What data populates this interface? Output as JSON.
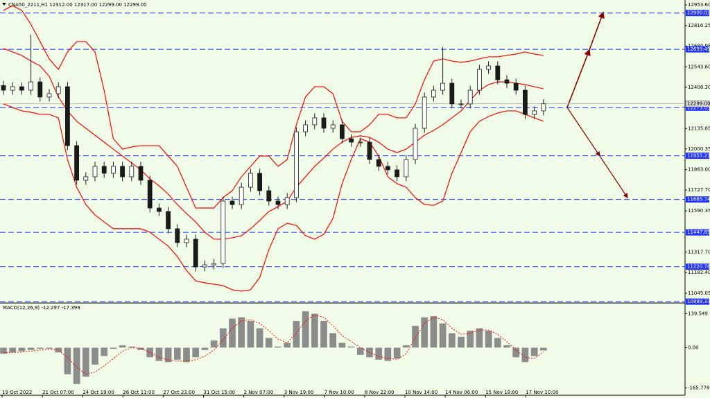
{
  "chart_data": [
    {
      "type": "candlestick",
      "title": "CNA50_2211,H1  12312.00 12317.00 12299.00 12299.00",
      "xlabels": [
        "19 Oct 2022",
        "21 Oct 07:00",
        "24 Oct 19:00",
        "26 Oct 11:00",
        "27 Oct 23:00",
        "31 Oct 15:00",
        "2 Nov 07:00",
        "3 Nov 19:00",
        "7 Nov 10:00",
        "8 Nov 22:00",
        "10 Nov 14:00",
        "14 Nov 06:00",
        "15 Nov 18:00",
        "17 Nov 10:00"
      ],
      "open": [
        12420,
        12389,
        12412,
        12389,
        12444,
        12344,
        12366,
        12412,
        12022,
        11793,
        11816,
        11885,
        11839,
        11885,
        11816,
        11885,
        11793,
        11609,
        11586,
        11472,
        11380,
        11403,
        11219,
        11233,
        11242,
        11655,
        11632,
        11747,
        11839,
        11724,
        11655,
        11632,
        11678,
        12114,
        12160,
        12206,
        12137,
        12160,
        12068,
        12045,
        12045,
        11930,
        11885,
        11862,
        11816,
        11930,
        12137,
        12344,
        12389,
        12435,
        12298,
        12298,
        12389,
        12527,
        12550,
        12458,
        12435,
        12389,
        12229,
        12252
      ],
      "high": [
        12450,
        12442,
        12442,
        12757,
        12474,
        12396,
        12442,
        12442,
        12052,
        11846,
        11915,
        11915,
        11915,
        11915,
        11915,
        11915,
        11823,
        11639,
        11616,
        11502,
        11433,
        11433,
        11263,
        11272,
        11685,
        11685,
        11777,
        11869,
        11869,
        11754,
        11685,
        11708,
        12144,
        12190,
        12236,
        12236,
        12190,
        12190,
        12098,
        12075,
        12075,
        11960,
        11915,
        11892,
        11960,
        12167,
        12374,
        12419,
        12674,
        12465,
        12328,
        12419,
        12557,
        12580,
        12580,
        12488,
        12465,
        12419,
        12282,
        12329
      ],
      "low": [
        12359,
        12359,
        12359,
        12359,
        12314,
        12314,
        12336,
        11992,
        11763,
        11763,
        11786,
        11809,
        11809,
        11786,
        11786,
        11763,
        11579,
        11556,
        11442,
        11350,
        11350,
        11189,
        11189,
        11203,
        11212,
        11602,
        11602,
        11717,
        11694,
        11625,
        11602,
        11602,
        11648,
        12084,
        12130,
        12107,
        12107,
        12038,
        12015,
        12015,
        11900,
        11855,
        11832,
        11786,
        11786,
        11900,
        12107,
        12314,
        12359,
        12268,
        12268,
        12268,
        12359,
        12497,
        12428,
        12405,
        12359,
        12199,
        12199,
        12222
      ],
      "close": [
        12389,
        12412,
        12389,
        12444,
        12344,
        12366,
        12412,
        12022,
        11793,
        11816,
        11885,
        11839,
        11885,
        11816,
        11885,
        11793,
        11609,
        11586,
        11472,
        11380,
        11403,
        11219,
        11233,
        11242,
        11655,
        11632,
        11747,
        11839,
        11724,
        11655,
        11632,
        11678,
        12114,
        12160,
        12206,
        12137,
        12160,
        12068,
        12045,
        12045,
        11930,
        11885,
        11862,
        11816,
        11930,
        12137,
        12344,
        12389,
        12435,
        12298,
        12298,
        12389,
        12527,
        12550,
        12458,
        12435,
        12389,
        12229,
        12252,
        12299
      ],
      "upper": [
        12917,
        12949,
        12917,
        12825,
        12711,
        12596,
        12527,
        12642,
        12711,
        12711,
        12642,
        12389,
        12068,
        11999,
        12013,
        12022,
        12022,
        12022,
        11953,
        11885,
        11747,
        11609,
        11609,
        11609,
        11678,
        11724,
        11816,
        11885,
        11953,
        11953,
        11885,
        11930,
        12160,
        12344,
        12412,
        12412,
        12366,
        12183,
        12114,
        12114,
        12160,
        12229,
        12229,
        12206,
        12206,
        12298,
        12458,
        12582,
        12596,
        12582,
        12573,
        12582,
        12596,
        12610,
        12610,
        12619,
        12628,
        12642,
        12628,
        12619
      ],
      "middle": [
        12665,
        12642,
        12619,
        12582,
        12550,
        12481,
        12344,
        12252,
        12183,
        12137,
        12091,
        12045,
        11999,
        11953,
        11908,
        11862,
        11802,
        11756,
        11701,
        11632,
        11573,
        11517,
        11449,
        11403,
        11403,
        11412,
        11426,
        11472,
        11527,
        11586,
        11618,
        11655,
        11747,
        11816,
        11885,
        11940,
        11999,
        12045,
        12077,
        12087,
        12077,
        12045,
        11999,
        11976,
        11999,
        12045,
        12091,
        12123,
        12160,
        12206,
        12252,
        12321,
        12389,
        12426,
        12444,
        12444,
        12435,
        12426,
        12412,
        12399
      ],
      "lower": [
        12298,
        12275,
        12252,
        12243,
        12229,
        12229,
        12206,
        11930,
        11747,
        11632,
        11563,
        11517,
        11472,
        11472,
        11472,
        11472,
        11449,
        11403,
        11357,
        11288,
        11196,
        11127,
        11114,
        11105,
        11095,
        11068,
        11059,
        11068,
        11150,
        11334,
        11472,
        11508,
        11494,
        11426,
        11403,
        11435,
        11540,
        11770,
        11930,
        12068,
        12045,
        11953,
        11816,
        11770,
        11747,
        11678,
        11632,
        11627,
        11655,
        11839,
        11976,
        12114,
        12183,
        12215,
        12238,
        12252,
        12252,
        12229,
        12206,
        12183
      ],
      "up_color": "#ffffff",
      "down_color": "#1a1a1a",
      "wick_color": "#1a1a1a",
      "band_color": "#ff0000",
      "ylim": [
        10985,
        12986
      ],
      "yticks": [
        {
          "value": 12953.6,
          "label": "12953.60"
        },
        12816.25,
        12680.95,
        {
          "value": 12543.6,
          "label": "12543.60"
        },
        {
          "value": 12408.3,
          "label": "12408.30"
        },
        12135.65,
        12000.35,
        {
          "value": 11863,
          "label": "11863.00"
        },
        {
          "value": 11727.7,
          "label": "11727.70"
        },
        11590.35,
        {
          "value": 11317.7,
          "label": "11317.70"
        },
        {
          "value": 11182.4,
          "label": "11182.40"
        },
        11045.05
      ],
      "levels": [
        12900.03,
        12659.49,
        12273.03,
        11955.21,
        11665.74,
        11447.85,
        11220.78,
        10989.37
      ],
      "level_color": "#2233ff",
      "current_price": {
        "value": 12299,
        "label": "12299.00"
      }
    },
    {
      "type": "macd",
      "title": "MACD(12,26,9) -12.297 -17.399",
      "histogram": [
        -25,
        -20,
        -15,
        -10,
        -5,
        -5,
        -20,
        -110,
        -150,
        -120,
        -70,
        -35,
        -5,
        10,
        5,
        -10,
        -40,
        -55,
        -60,
        -50,
        -60,
        -40,
        -10,
        30,
        80,
        120,
        125,
        110,
        80,
        40,
        5,
        20,
        110,
        150,
        140,
        110,
        60,
        20,
        5,
        -30,
        -40,
        -50,
        -55,
        -45,
        10,
        90,
        125,
        130,
        100,
        60,
        45,
        70,
        80,
        70,
        40,
        10,
        -40,
        -60,
        -35,
        -12.297
      ],
      "signal": [
        -20,
        -20,
        -18,
        -14,
        -10,
        -7,
        -10,
        -40,
        -80,
        -110,
        -100,
        -75,
        -45,
        -15,
        0,
        -3,
        -20,
        -40,
        -50,
        -55,
        -55,
        -50,
        -35,
        -10,
        30,
        80,
        110,
        115,
        100,
        70,
        35,
        20,
        60,
        110,
        135,
        125,
        90,
        50,
        25,
        0,
        -20,
        -35,
        -45,
        -48,
        -25,
        40,
        100,
        125,
        115,
        80,
        55,
        60,
        72,
        72,
        55,
        25,
        -10,
        -40,
        -45,
        -17.399
      ],
      "histogram_color": "#8c8c8c",
      "signal_color": "#ff0000",
      "ylim": [
        -190,
        175
      ],
      "yticks": [
        139.549,
        {
          "value": 0,
          "label": "0.00"
        },
        -165.778
      ]
    }
  ]
}
